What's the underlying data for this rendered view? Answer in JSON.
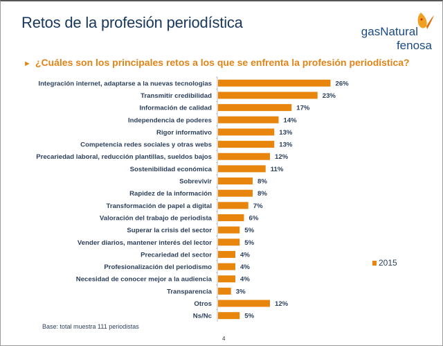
{
  "title": "Retos de la profesión periodística",
  "logo": {
    "line1": "gasNatural",
    "line2": "fenosa"
  },
  "subtitle": "¿Cuáles son los principales retos a los que se enfrenta la profesión periodística?",
  "footnote": "Base: total muestra 111 periodistas",
  "page_number": "4",
  "chart_data": {
    "type": "bar",
    "orientation": "horizontal",
    "categories": [
      "Integración internet, adaptarse a la nuevas tecnologias",
      "Transmitir credibilidad",
      "Información de calidad",
      "Independencia de poderes",
      "Rigor informativo",
      "Competencia redes sociales y otras webs",
      "Precariedad laboral, reducción plantillas, sueldos bajos",
      "Sostenibilidad económica",
      "Sobrevivir",
      "Rapidez de la información",
      "Transformación de papel a digital",
      "Valoración del trabajo de periodista",
      "Superar la crisis del sector",
      "Vender diarios, mantener interés del lector",
      "Precariedad del sector",
      "Profesionalización del periodismo",
      "Necesidad de conocer mejor a la audiencia",
      "Transparencia",
      "Otros",
      "Ns/Nc"
    ],
    "series": [
      {
        "name": "2015",
        "values": [
          26,
          23,
          17,
          14,
          13,
          13,
          12,
          11,
          8,
          8,
          7,
          6,
          5,
          5,
          4,
          4,
          4,
          3,
          12,
          5
        ],
        "color": "#e8850c"
      }
    ],
    "value_suffix": "%",
    "legend": "right",
    "grid": false
  }
}
